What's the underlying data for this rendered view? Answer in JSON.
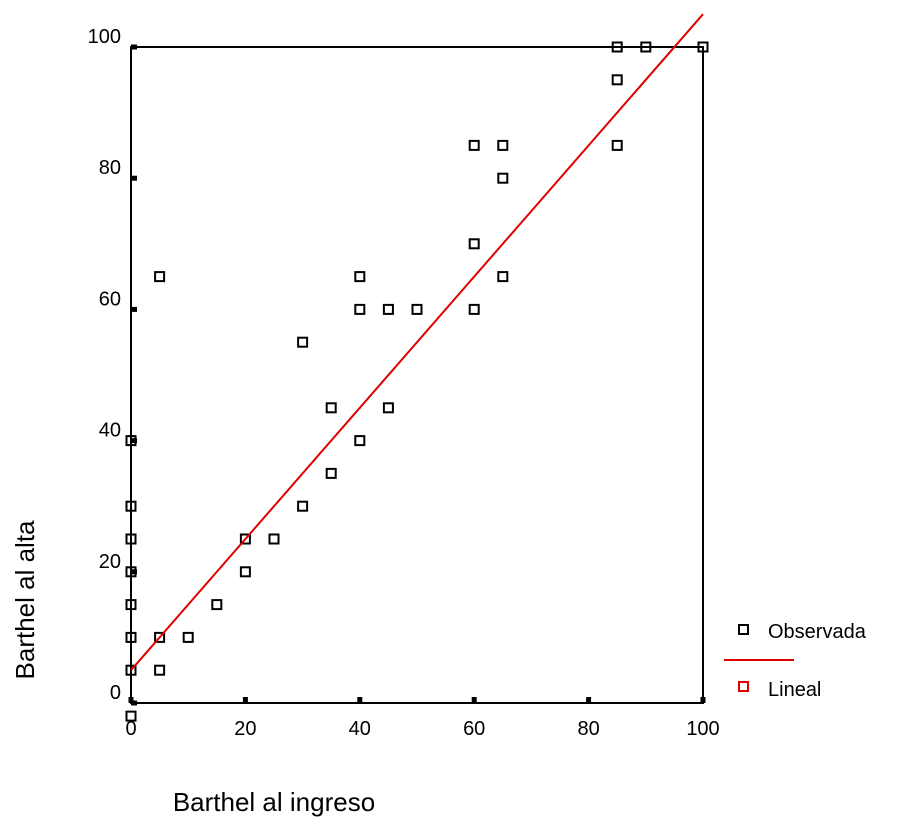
{
  "chart_data": {
    "type": "scatter",
    "title": "",
    "xlabel": "Barthel al ingreso",
    "ylabel": "Barthel al alta",
    "xlim": [
      0,
      100
    ],
    "ylim": [
      0,
      100
    ],
    "x_ticks": [
      "0",
      "20",
      "40",
      "60",
      "80",
      "100"
    ],
    "y_ticks": [
      "0",
      "20",
      "40",
      "60",
      "80",
      "100"
    ],
    "grid": false,
    "legend_position": "right",
    "colors": {
      "observed": "#000000",
      "fit": "#e00000"
    },
    "series": [
      {
        "name": "Observada",
        "kind": "scatter",
        "points": [
          [
            0,
            -2
          ],
          [
            0,
            5
          ],
          [
            0,
            10
          ],
          [
            0,
            15
          ],
          [
            0,
            20
          ],
          [
            0,
            25
          ],
          [
            0,
            30
          ],
          [
            0,
            40
          ],
          [
            5,
            5
          ],
          [
            5,
            10
          ],
          [
            5,
            65
          ],
          [
            10,
            10
          ],
          [
            15,
            15
          ],
          [
            20,
            20
          ],
          [
            20,
            25
          ],
          [
            25,
            25
          ],
          [
            30,
            30
          ],
          [
            30,
            55
          ],
          [
            35,
            35
          ],
          [
            35,
            45
          ],
          [
            40,
            40
          ],
          [
            40,
            60
          ],
          [
            40,
            65
          ],
          [
            45,
            45
          ],
          [
            45,
            60
          ],
          [
            50,
            60
          ],
          [
            60,
            60
          ],
          [
            60,
            70
          ],
          [
            60,
            85
          ],
          [
            65,
            65
          ],
          [
            65,
            80
          ],
          [
            65,
            85
          ],
          [
            85,
            85
          ],
          [
            85,
            95
          ],
          [
            85,
            100
          ],
          [
            90,
            100
          ],
          [
            100,
            100
          ]
        ]
      },
      {
        "name": "Lineal",
        "kind": "line",
        "points": [
          [
            0,
            5
          ],
          [
            100,
            105
          ]
        ]
      }
    ]
  }
}
